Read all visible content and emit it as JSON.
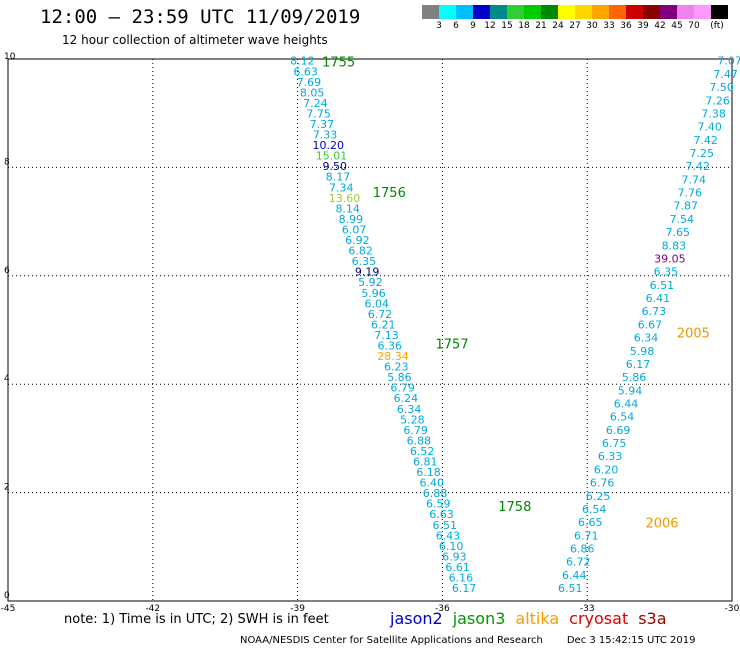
{
  "header": {
    "title": "12:00 — 23:59 UTC 11/09/2019",
    "subtitle": "12 hour collection of altimeter wave heights"
  },
  "legend": {
    "colors": [
      "#808080",
      "#00ffff",
      "#00bfff",
      "#0000cd",
      "#008b8b",
      "#32cd32",
      "#00cc00",
      "#008800",
      "#ffff00",
      "#ffd700",
      "#ffa500",
      "#ff6600",
      "#cc0000",
      "#8b0000",
      "#800080",
      "#ee82ee",
      "#ff99ff",
      "#000000"
    ],
    "labels": [
      "3",
      "6",
      "9",
      "12",
      "15",
      "18",
      "21",
      "24",
      "27",
      "30",
      "33",
      "36",
      "39",
      "42",
      "45",
      "70",
      "(ft)"
    ]
  },
  "map": {
    "x_ticks": [
      "-45",
      "-42",
      "-39",
      "-36",
      "-33",
      "-30"
    ],
    "y_ticks": [
      "0",
      "2",
      "4",
      "6",
      "8",
      "10"
    ],
    "xlim": [
      -45,
      -30
    ],
    "ylim": [
      0,
      10
    ],
    "track1": {
      "color": "#00aadd",
      "start": [
        -38.9,
        9.95
      ],
      "end": [
        -35.55,
        0.22
      ],
      "values": [
        "8.12",
        "6.63",
        "7.69",
        "8.05",
        "7.24",
        "7.75",
        "7.37",
        "7.33",
        "10.20",
        "15.01",
        "9.50",
        "8.17",
        "7.34",
        "13.60",
        "8.14",
        "8.99",
        "6.07",
        "6.92",
        "6.82",
        "6.35",
        "9.19",
        "5.92",
        "5.96",
        "6.04",
        "6.72",
        "6.21",
        "7.13",
        "6.36",
        "28.34",
        "6.23",
        "5.86",
        "6.79",
        "6.24",
        "6.34",
        "5.28",
        "6.79",
        "6.88",
        "6.52",
        "6.81",
        "6.18",
        "6.40",
        "6.88",
        "6.59",
        "6.63",
        "6.51",
        "6.43",
        "6.10",
        "6.93",
        "6.61",
        "6.16",
        "6.17"
      ],
      "overrides": {
        "8": "#0000cd",
        "9": "#32cd32",
        "10": "#000080",
        "13": "#9acd32",
        "20": "#000080",
        "28": "#ffa500"
      }
    },
    "track2": {
      "color": "#00aadd",
      "start": [
        -30.05,
        9.95
      ],
      "end": [
        -33.35,
        0.22
      ],
      "values": [
        "7.07",
        "7.47",
        "7.50",
        "7.26",
        "7.38",
        "7.40",
        "7.42",
        "7.25",
        "7.42",
        "7.74",
        "7.76",
        "7.87",
        "7.54",
        "7.65",
        "8.83",
        "39.05",
        "6.35",
        "6.51",
        "6.41",
        "6.73",
        "6.67",
        "6.34",
        "5.98",
        "6.17",
        "5.86",
        "5.94",
        "6.44",
        "6.54",
        "6.69",
        "6.75",
        "6.33",
        "6.20",
        "6.76",
        "6.25",
        "6.54",
        "6.65",
        "6.71",
        "6.86",
        "6.72",
        "6.44",
        "6.51"
      ],
      "overrides": {
        "15": "#800080"
      }
    },
    "time_labels": [
      {
        "text": "1755",
        "lon": -38.15,
        "lat": 9.95,
        "color": "#008800"
      },
      {
        "text": "1756",
        "lon": -37.1,
        "lat": 7.55,
        "color": "#008800"
      },
      {
        "text": "1757",
        "lon": -35.8,
        "lat": 4.75,
        "color": "#008800"
      },
      {
        "text": "1758",
        "lon": -34.5,
        "lat": 1.75,
        "color": "#008800"
      },
      {
        "text": "2005",
        "lon": -30.8,
        "lat": 4.95,
        "color": "#ee9900"
      },
      {
        "text": "2006",
        "lon": -31.45,
        "lat": 1.45,
        "color": "#ee9900"
      }
    ]
  },
  "footer": {
    "note": "note:  1) Time is in UTC;  2) SWH is in feet",
    "credit": "NOAA/NESDIS Center for Satellite Applications and Research",
    "timestamp": "Dec  3 15:42:15 UTC 2019",
    "satellites": [
      {
        "name": "jason2",
        "color": "#0000cc"
      },
      {
        "name": "jason3",
        "color": "#009900"
      },
      {
        "name": "altika",
        "color": "#ff9900"
      },
      {
        "name": "cryosat",
        "color": "#dd0000"
      },
      {
        "name": "s3a",
        "color": "#990000"
      }
    ]
  }
}
